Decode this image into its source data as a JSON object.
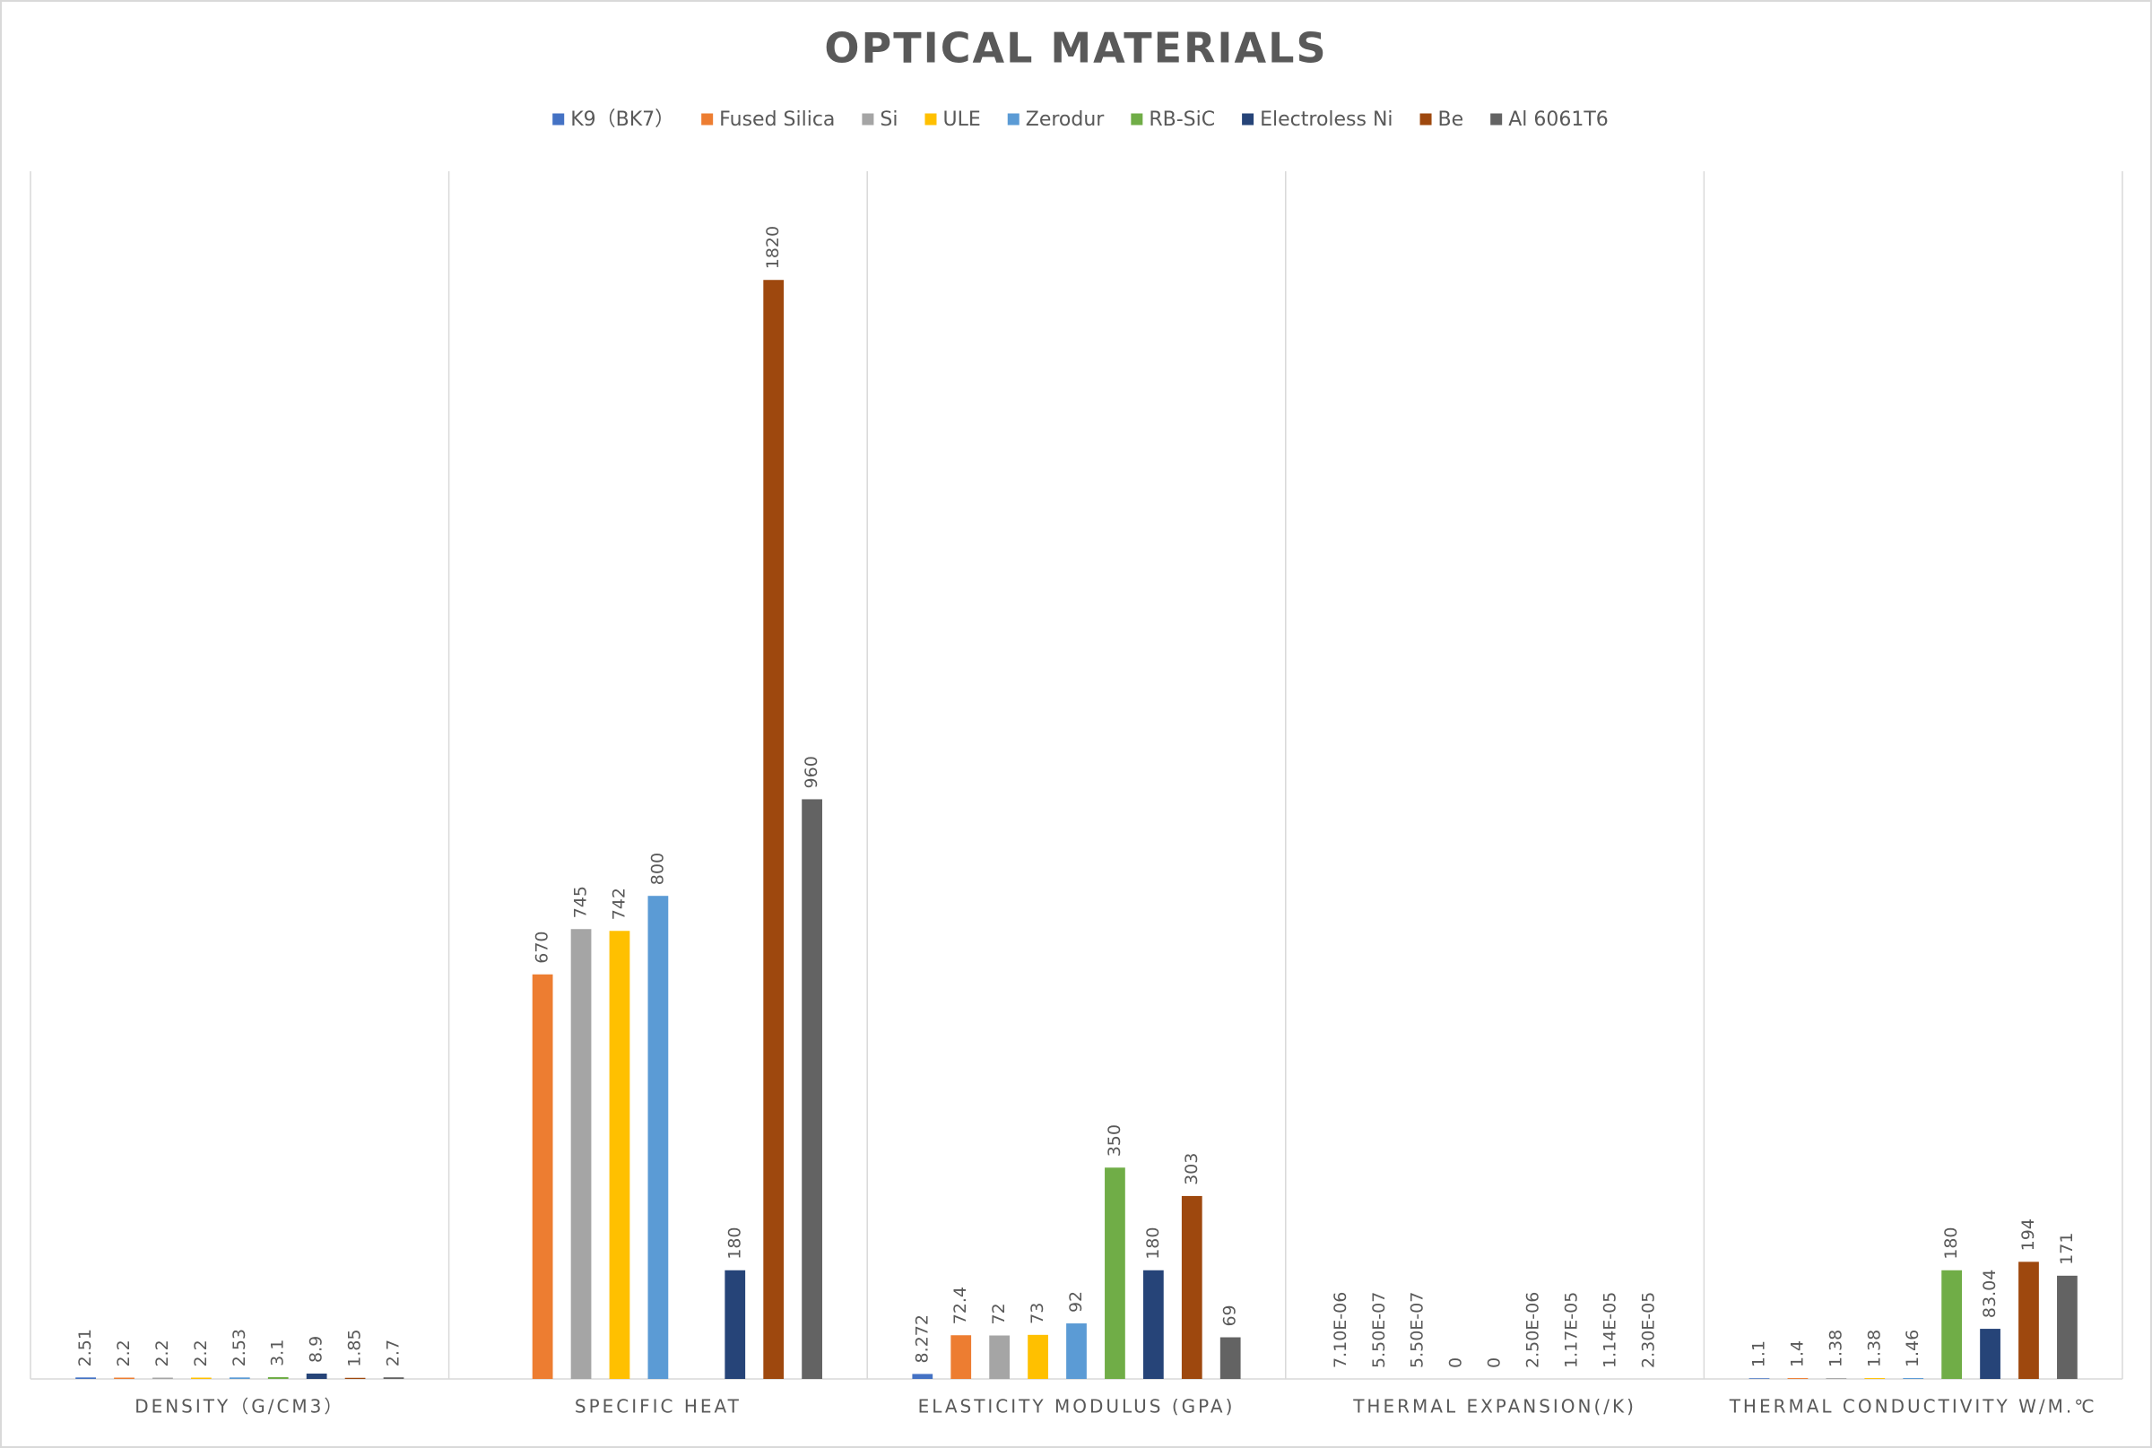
{
  "chart_data": {
    "type": "bar",
    "title": "OPTICAL MATERIALS",
    "categories": [
      "DENSITY（G/CM3）",
      "SPECIFIC HEAT",
      "ELASTICITY MODULUS (GPA)",
      "THERMAL EXPANSION(/K)",
      "THERMAL CONDUCTIVITY W/M.℃"
    ],
    "ylim": [
      0,
      2000
    ],
    "grid": false,
    "legend": "top",
    "series": [
      {
        "name": "K9（BK7）",
        "color": "#4472c4",
        "values": [
          2.51,
          null,
          8.272,
          7.1e-06,
          1.1
        ],
        "value_labels": [
          "2.51",
          null,
          "8.272",
          "7.10E-06",
          "1.1"
        ]
      },
      {
        "name": "Fused Silica",
        "color": "#ed7d31",
        "values": [
          2.2,
          670,
          72.4,
          5.5e-07,
          1.4
        ],
        "value_labels": [
          "2.2",
          "670",
          "72.4",
          "5.50E-07",
          "1.4"
        ]
      },
      {
        "name": "Si",
        "color": "#a5a5a5",
        "values": [
          2.2,
          745,
          72,
          5.5e-07,
          1.38
        ],
        "value_labels": [
          "2.2",
          "745",
          "72",
          "5.50E-07",
          "1.38"
        ]
      },
      {
        "name": "ULE",
        "color": "#ffc000",
        "values": [
          2.2,
          742,
          73,
          0,
          1.38
        ],
        "value_labels": [
          "2.2",
          "742",
          "73",
          "0",
          "1.38"
        ]
      },
      {
        "name": "Zerodur",
        "color": "#5b9bd5",
        "values": [
          2.53,
          800,
          92,
          0,
          1.46
        ],
        "value_labels": [
          "2.53",
          "800",
          "92",
          "0",
          "1.46"
        ]
      },
      {
        "name": "RB-SiC",
        "color": "#70ad47",
        "values": [
          3.1,
          null,
          350,
          2.5e-06,
          180
        ],
        "value_labels": [
          "3.1",
          null,
          "350",
          "2.50E-06",
          "180"
        ]
      },
      {
        "name": "Electroless Ni",
        "color": "#264478",
        "values": [
          8.9,
          180,
          180,
          1.17e-05,
          83.04
        ],
        "value_labels": [
          "8.9",
          "180",
          "180",
          "1.17E-05",
          "83.04"
        ]
      },
      {
        "name": "Be",
        "color": "#9e480e",
        "values": [
          1.85,
          1820,
          303,
          1.14e-05,
          194
        ],
        "value_labels": [
          "1.85",
          "1820",
          "303",
          "1.14E-05",
          "194"
        ]
      },
      {
        "name": "Al 6061T6",
        "color": "#636363",
        "values": [
          2.7,
          960,
          69,
          2.3e-05,
          171
        ],
        "value_labels": [
          "2.7",
          "960",
          "69",
          "2.30E-05",
          "171"
        ]
      }
    ]
  }
}
